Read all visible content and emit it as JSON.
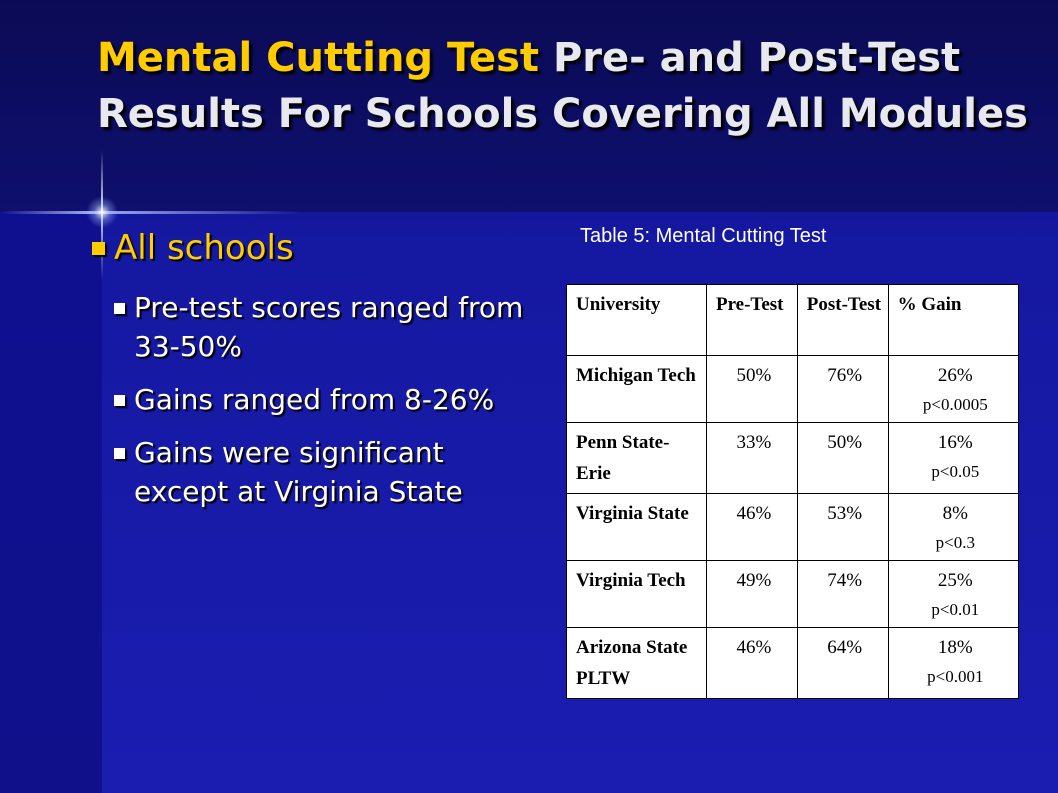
{
  "slide": {
    "title_accent": "Mental Cutting Test",
    "title_rest": " Pre- and Post-Test Results For Schools Covering All Modules"
  },
  "bullets": {
    "main": "All schools",
    "sub": [
      "Pre-test scores ranged from 33-50%",
      "Gains ranged from 8-26%",
      "Gains were significant except at Virginia State"
    ]
  },
  "table": {
    "caption": "Table 5: Mental Cutting Test",
    "headers": [
      "University",
      "Pre-Test",
      "Post-Test",
      "% Gain"
    ],
    "rows": [
      {
        "university": "Michigan Tech",
        "pre": "50%",
        "post": "76%",
        "gain": "26%",
        "p": "p<0.0005"
      },
      {
        "university": "Penn State-Erie",
        "pre": "33%",
        "post": "50%",
        "gain": "16%",
        "p": "p<0.05"
      },
      {
        "university": "Virginia State",
        "pre": "46%",
        "post": "53%",
        "gain": "8%",
        "p": "p<0.3"
      },
      {
        "university": "Virginia Tech",
        "pre": "49%",
        "post": "74%",
        "gain": "25%",
        "p": "p<0.01"
      },
      {
        "university": "Arizona State PLTW",
        "pre": "46%",
        "post": "64%",
        "gain": "18%",
        "p": "p<0.001"
      }
    ]
  },
  "colors": {
    "background": "#1a1ca8",
    "header": "#0b0b55",
    "accent": "#ffcc00",
    "text": "#ffffff"
  }
}
